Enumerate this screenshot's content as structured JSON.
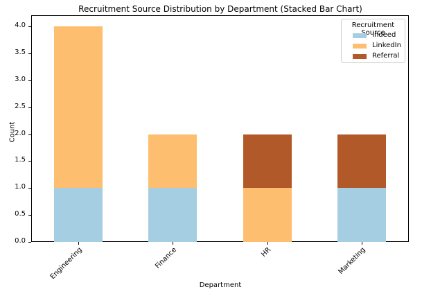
{
  "chart_data": {
    "type": "bar",
    "stacked": true,
    "title": "Recruitment Source Distribution by Department (Stacked Bar Chart)",
    "xlabel": "Department",
    "ylabel": "Count",
    "categories": [
      "Engineering",
      "Finance",
      "HR",
      "Marketing"
    ],
    "series": [
      {
        "name": "Indeed",
        "color": "#a6cee3",
        "values": [
          1,
          1,
          0,
          1
        ]
      },
      {
        "name": "LinkedIn",
        "color": "#fdbf6f",
        "values": [
          3,
          1,
          1,
          0
        ]
      },
      {
        "name": "Referral",
        "color": "#b15928",
        "values": [
          0,
          0,
          1,
          1
        ]
      }
    ],
    "ylim": [
      0,
      4.2
    ],
    "yticks": [
      "0.0",
      "0.5",
      "1.0",
      "1.5",
      "2.0",
      "2.5",
      "3.0",
      "3.5",
      "4.0"
    ],
    "grid": false,
    "legend_title": "Recruitment Source",
    "legend_position": "upper right"
  }
}
